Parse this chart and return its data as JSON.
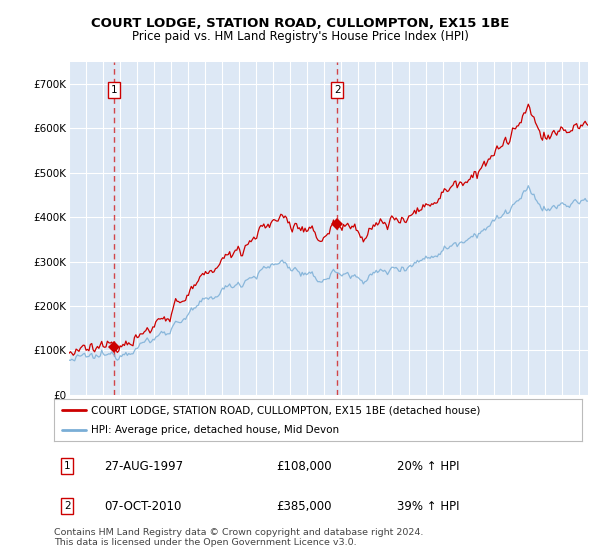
{
  "title": "COURT LODGE, STATION ROAD, CULLOMPTON, EX15 1BE",
  "subtitle": "Price paid vs. HM Land Registry's House Price Index (HPI)",
  "legend_line1": "COURT LODGE, STATION ROAD, CULLOMPTON, EX15 1BE (detached house)",
  "legend_line2": "HPI: Average price, detached house, Mid Devon",
  "annotation1_date": "27-AUG-1997",
  "annotation1_price": 108000,
  "annotation1_hpi_text": "20% ↑ HPI",
  "annotation2_date": "07-OCT-2010",
  "annotation2_price": 385000,
  "annotation2_hpi_text": "39% ↑ HPI",
  "footer": "Contains HM Land Registry data © Crown copyright and database right 2024.\nThis data is licensed under the Open Government Licence v3.0.",
  "red_color": "#cc0000",
  "blue_color": "#7aaed6",
  "plot_bg": "#dde8f5",
  "grid_color": "#ffffff",
  "fig_bg": "#ffffff",
  "ylim": [
    0,
    750000
  ],
  "yticks": [
    0,
    100000,
    200000,
    300000,
    400000,
    500000,
    600000,
    700000
  ],
  "ytick_labels": [
    "£0",
    "£100K",
    "£200K",
    "£300K",
    "£400K",
    "£500K",
    "£600K",
    "£700K"
  ],
  "sale1_x": 1997.65,
  "sale1_y": 108000,
  "sale2_x": 2010.77,
  "sale2_y": 385000,
  "hpi_scale1": 1.2,
  "hpi_scale2": 1.39,
  "xmin": 1995.0,
  "xmax": 2025.5,
  "n_points": 366
}
